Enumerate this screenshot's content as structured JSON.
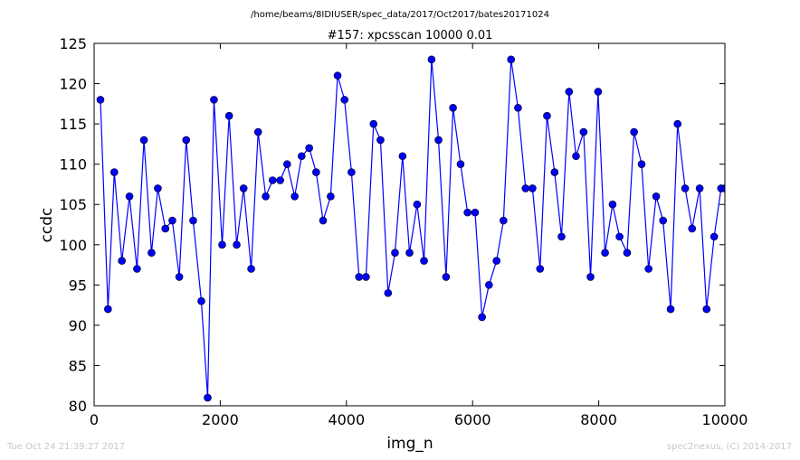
{
  "suptitle": "/home/beams/8IDIUSER/spec_data/2017/Oct2017/bates20171024",
  "footer": {
    "left": "Tue Oct 24 21:39:27 2017",
    "right": "spec2nexus, (C) 2014-2017"
  },
  "colors": {
    "series": "#0000ff",
    "marker_fill": "#0000ff",
    "marker_edge": "#000000",
    "axes": "#000000",
    "footer_text": "#c8c8c8"
  },
  "chart_data": {
    "type": "line",
    "title": "#157: xpcsscan 10000 0.01",
    "xlabel": "img_n",
    "ylabel": "ccdc",
    "xlim": [
      0,
      10000
    ],
    "ylim": [
      80,
      125
    ],
    "grid": false,
    "markers": "circle",
    "xticks": [
      0,
      2000,
      4000,
      6000,
      8000,
      10000
    ],
    "yticks": [
      80,
      85,
      90,
      95,
      100,
      105,
      110,
      115,
      120,
      125
    ],
    "series": [
      {
        "x": [
          100,
          220,
          320,
          440,
          560,
          680,
          790,
          910,
          1010,
          1130,
          1240,
          1350,
          1460,
          1570,
          1700,
          1800,
          1900,
          2030,
          2140,
          2260,
          2370,
          2490,
          2600,
          2720,
          2830,
          2950,
          3060,
          3180,
          3290,
          3410,
          3520,
          3630,
          3750,
          3860,
          3970,
          4080,
          4200,
          4310,
          4430,
          4540,
          4660,
          4770,
          4890,
          5000,
          5120,
          5230,
          5350,
          5460,
          5580,
          5690,
          5810,
          5920,
          6040,
          6150,
          6260,
          6380,
          6490,
          6610,
          6720,
          6840,
          6950,
          7070,
          7180,
          7300,
          7410,
          7530,
          7640,
          7760,
          7870,
          7990,
          8100,
          8220,
          8330,
          8450,
          8560,
          8680,
          8790,
          8910,
          9020,
          9140,
          9250,
          9370,
          9480,
          9600,
          9710,
          9830,
          9940,
          10000
        ],
        "y": [
          118,
          92,
          109,
          98,
          106,
          97,
          113,
          99,
          107,
          102,
          103,
          96,
          113,
          103,
          93,
          81,
          118,
          100,
          116,
          100,
          107,
          97,
          114,
          106,
          108,
          108,
          110,
          106,
          111,
          112,
          109,
          103,
          106,
          121,
          118,
          109,
          96,
          96,
          115,
          113,
          94,
          99,
          111,
          99,
          105,
          98,
          123,
          113,
          96,
          117,
          110,
          104,
          104,
          91,
          95,
          98,
          103,
          123,
          117,
          107,
          107,
          97,
          116,
          109,
          101,
          119,
          111,
          114,
          96,
          119,
          99,
          105,
          101,
          99,
          114,
          110,
          97,
          106,
          103,
          92,
          115,
          107,
          102,
          107,
          92,
          101,
          107,
          107
        ]
      }
    ]
  }
}
